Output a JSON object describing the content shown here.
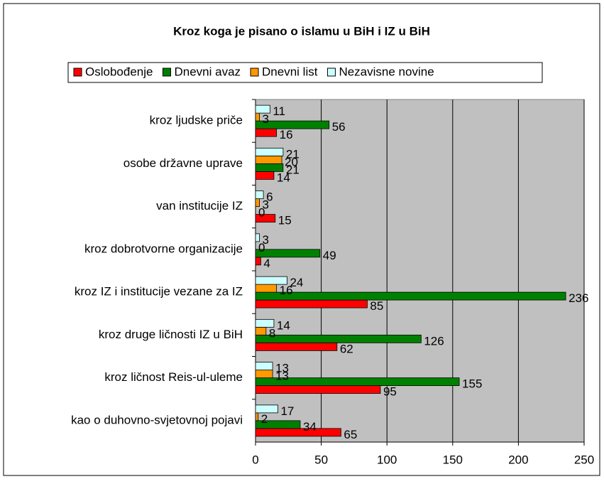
{
  "chart_data": {
    "type": "bar",
    "orientation": "horizontal",
    "title": "Kroz koga je pisano o islamu u BiH i IZ u BiH",
    "categories": [
      "kroz ljudske priče",
      "osobe državne uprave",
      "van institucije IZ",
      "kroz dobrotvorne organizacije",
      "kroz IZ i institucije vezane za IZ",
      "kroz druge ličnosti IZ u BiH",
      "kroz ličnost Reis-ul-uleme",
      "kao o duhovno-svjetovnoj pojavi"
    ],
    "series": [
      {
        "name": "Oslobođenje",
        "color": "#ff0000",
        "values": [
          16,
          14,
          15,
          4,
          85,
          62,
          95,
          65
        ]
      },
      {
        "name": "Dnevni avaz",
        "color": "#008000",
        "values": [
          56,
          21,
          0,
          49,
          236,
          126,
          155,
          34
        ]
      },
      {
        "name": "Dnevni list",
        "color": "#ff9900",
        "values": [
          3,
          20,
          3,
          0,
          16,
          8,
          13,
          2
        ]
      },
      {
        "name": "Nezavisne novine",
        "color": "#ccffff",
        "values": [
          11,
          21,
          6,
          3,
          24,
          14,
          13,
          17
        ]
      }
    ],
    "xlim": [
      0,
      250
    ],
    "xticks": [
      0,
      50,
      100,
      150,
      200,
      250
    ],
    "grid": true,
    "legend": "top"
  }
}
